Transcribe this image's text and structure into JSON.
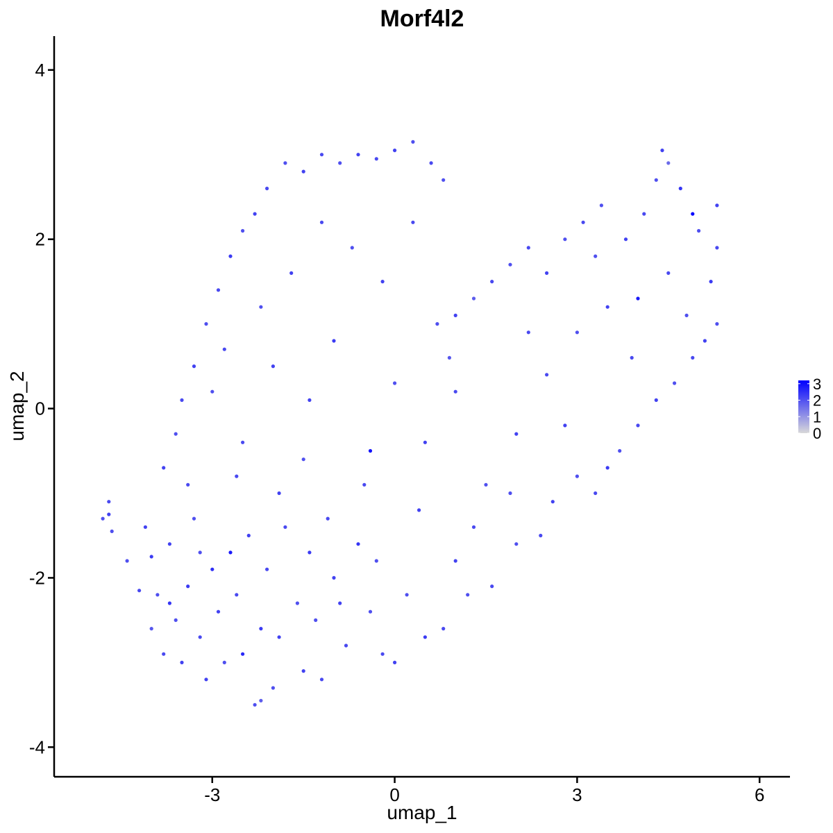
{
  "chart_data": {
    "type": "scatter",
    "title": "Morf4l2",
    "xlabel": "umap_1",
    "ylabel": "umap_2",
    "xlim": [
      -5.6,
      6.5
    ],
    "ylim": [
      -4.35,
      4.4
    ],
    "x_ticks": [
      -3,
      0,
      3,
      6
    ],
    "y_ticks": [
      -4,
      -2,
      0,
      2,
      4
    ],
    "x_tick_labels": [
      "-3",
      "0",
      "3",
      "6"
    ],
    "y_tick_labels": [
      "-4",
      "-2",
      "0",
      "2",
      "4"
    ],
    "grid": false,
    "legend": {
      "placement": "right",
      "type": "colorbar",
      "ticks": [
        0,
        1,
        2,
        3
      ],
      "tick_labels": [
        "0",
        "1",
        "2",
        "3"
      ],
      "range": [
        0,
        3.2
      ],
      "low_color": "#d9d9d9",
      "high_color": "#0000ff"
    },
    "point_color_scale": {
      "low": "#d3d3d3",
      "high": "#0000ff"
    },
    "series": [
      {
        "points": [
          [
            -4.8,
            -1.3,
            2.0
          ],
          [
            -4.7,
            -1.1,
            2.1
          ],
          [
            -4.7,
            -1.25,
            2.2
          ],
          [
            -4.65,
            -1.45,
            2.0
          ],
          [
            -4.4,
            -1.8,
            2.0
          ],
          [
            -4.2,
            -2.15,
            2.1
          ],
          [
            -4.1,
            -1.4,
            2.2
          ],
          [
            -4.0,
            -2.6,
            1.9
          ],
          [
            -4.0,
            -1.75,
            2.3
          ],
          [
            -3.9,
            -2.2,
            2.0
          ],
          [
            -3.8,
            -2.9,
            2.1
          ],
          [
            -3.7,
            -1.6,
            2.2
          ],
          [
            -3.7,
            -2.3,
            2.4
          ],
          [
            -3.6,
            -2.5,
            2.0
          ],
          [
            -3.5,
            -3.0,
            2.2
          ],
          [
            -3.4,
            -2.1,
            2.3
          ],
          [
            -3.3,
            -1.3,
            2.0
          ],
          [
            -3.2,
            -2.7,
            2.1
          ],
          [
            -3.1,
            -3.2,
            2.2
          ],
          [
            -3.0,
            -1.9,
            2.5
          ],
          [
            -2.9,
            -2.4,
            2.2
          ],
          [
            -2.8,
            -3.0,
            2.0
          ],
          [
            -2.7,
            -1.7,
            2.8
          ],
          [
            -2.6,
            -2.2,
            2.1
          ],
          [
            -2.5,
            -2.9,
            2.6
          ],
          [
            -2.4,
            -1.5,
            2.2
          ],
          [
            -2.3,
            -3.5,
            2.0
          ],
          [
            -2.2,
            -3.45,
            1.8
          ],
          [
            -2.2,
            -2.6,
            2.3
          ],
          [
            -2.1,
            -1.9,
            2.1
          ],
          [
            -2.0,
            -3.3,
            2.0
          ],
          [
            -1.9,
            -2.7,
            2.2
          ],
          [
            -1.8,
            -1.4,
            2.1
          ],
          [
            -1.6,
            -2.3,
            2.0
          ],
          [
            -1.5,
            -3.1,
            2.2
          ],
          [
            -1.4,
            -1.7,
            2.3
          ],
          [
            -1.3,
            -2.5,
            2.0
          ],
          [
            -1.2,
            -3.2,
            2.1
          ],
          [
            -1.0,
            -2.0,
            2.2
          ],
          [
            -0.8,
            -2.8,
            2.1
          ],
          [
            -0.6,
            -1.6,
            2.4
          ],
          [
            -0.4,
            -2.4,
            2.0
          ],
          [
            -0.2,
            -2.9,
            2.1
          ],
          [
            0.0,
            -3.0,
            2.2
          ],
          [
            0.2,
            -2.2,
            2.0
          ],
          [
            0.5,
            -2.7,
            2.3
          ],
          [
            0.8,
            -2.6,
            2.1
          ],
          [
            1.0,
            -1.8,
            2.2
          ],
          [
            1.2,
            -2.2,
            2.0
          ],
          [
            1.6,
            -2.1,
            2.1
          ],
          [
            2.0,
            -1.6,
            2.0
          ],
          [
            2.4,
            -1.5,
            2.1
          ],
          [
            2.6,
            -1.1,
            2.2
          ],
          [
            3.0,
            -0.8,
            2.0
          ],
          [
            3.3,
            -1.0,
            2.1
          ],
          [
            3.5,
            -0.7,
            2.3
          ],
          [
            3.7,
            -0.5,
            2.0
          ],
          [
            4.0,
            -0.2,
            2.1
          ],
          [
            4.3,
            0.1,
            2.2
          ],
          [
            4.6,
            0.3,
            2.0
          ],
          [
            4.9,
            0.6,
            2.1
          ],
          [
            5.1,
            0.8,
            2.2
          ],
          [
            5.3,
            1.0,
            2.0
          ],
          [
            5.2,
            1.5,
            2.3
          ],
          [
            5.3,
            1.9,
            2.1
          ],
          [
            5.3,
            2.4,
            2.2
          ],
          [
            5.0,
            2.1,
            2.0
          ],
          [
            4.9,
            2.3,
            3.1
          ],
          [
            4.7,
            2.6,
            2.4
          ],
          [
            4.5,
            2.9,
            1.6
          ],
          [
            4.4,
            3.05,
            2.2
          ],
          [
            4.3,
            2.7,
            2.0
          ],
          [
            4.1,
            2.3,
            2.1
          ],
          [
            3.8,
            2.0,
            2.2
          ],
          [
            3.4,
            2.4,
            2.0
          ],
          [
            3.1,
            2.2,
            2.1
          ],
          [
            2.8,
            2.0,
            2.0
          ],
          [
            2.5,
            1.6,
            2.2
          ],
          [
            2.2,
            1.9,
            2.1
          ],
          [
            1.9,
            1.7,
            2.0
          ],
          [
            1.6,
            1.5,
            2.1
          ],
          [
            1.3,
            1.3,
            1.8
          ],
          [
            1.0,
            1.1,
            2.2
          ],
          [
            0.8,
            2.7,
            2.0
          ],
          [
            0.6,
            2.9,
            2.1
          ],
          [
            0.3,
            3.15,
            2.0
          ],
          [
            0.0,
            3.05,
            2.2
          ],
          [
            -0.3,
            2.95,
            2.1
          ],
          [
            -0.6,
            3.0,
            2.2
          ],
          [
            -0.9,
            2.9,
            2.0
          ],
          [
            -1.2,
            3.0,
            2.1
          ],
          [
            -1.5,
            2.8,
            2.2
          ],
          [
            -1.8,
            2.9,
            2.0
          ],
          [
            -2.1,
            2.6,
            2.1
          ],
          [
            -2.3,
            2.3,
            2.2
          ],
          [
            -2.5,
            2.1,
            2.0
          ],
          [
            -2.7,
            1.8,
            2.3
          ],
          [
            -2.9,
            1.4,
            2.1
          ],
          [
            -3.1,
            1.0,
            2.0
          ],
          [
            -3.3,
            0.5,
            2.2
          ],
          [
            -3.5,
            0.1,
            2.1
          ],
          [
            -3.6,
            -0.3,
            2.0
          ],
          [
            -3.8,
            -0.7,
            2.2
          ],
          [
            -3.0,
            0.2,
            2.0
          ],
          [
            -2.5,
            -0.4,
            2.1
          ],
          [
            -2.0,
            0.5,
            2.2
          ],
          [
            -1.5,
            -0.6,
            2.0
          ],
          [
            -1.0,
            0.8,
            2.3
          ],
          [
            -0.5,
            -0.9,
            2.1
          ],
          [
            0.0,
            0.3,
            2.0
          ],
          [
            0.5,
            -0.4,
            2.2
          ],
          [
            1.0,
            0.2,
            2.1
          ],
          [
            1.5,
            -0.9,
            2.0
          ],
          [
            2.0,
            -0.3,
            2.2
          ],
          [
            2.5,
            0.4,
            2.1
          ],
          [
            3.0,
            0.9,
            2.0
          ],
          [
            3.5,
            1.2,
            2.2
          ],
          [
            4.0,
            1.3,
            2.8
          ],
          [
            4.5,
            1.6,
            2.1
          ],
          [
            -2.2,
            1.2,
            2.0
          ],
          [
            -1.7,
            1.6,
            2.2
          ],
          [
            -1.2,
            2.2,
            2.1
          ],
          [
            -0.7,
            1.9,
            2.0
          ],
          [
            -0.2,
            1.5,
            2.2
          ],
          [
            0.3,
            2.2,
            2.1
          ],
          [
            0.7,
            1.0,
            2.0
          ],
          [
            -0.4,
            -0.5,
            2.9
          ],
          [
            -2.6,
            -0.8,
            2.1
          ],
          [
            -3.2,
            -1.7,
            2.0
          ],
          [
            -1.9,
            -1.0,
            2.2
          ],
          [
            -1.1,
            -1.3,
            2.1
          ],
          [
            -0.3,
            -1.8,
            2.0
          ],
          [
            0.4,
            -1.2,
            2.2
          ],
          [
            1.3,
            -1.4,
            2.1
          ],
          [
            1.9,
            -1.0,
            2.0
          ],
          [
            2.8,
            -0.2,
            2.2
          ],
          [
            3.9,
            0.6,
            2.1
          ],
          [
            4.8,
            1.1,
            2.0
          ],
          [
            -2.8,
            0.7,
            2.1
          ],
          [
            -1.4,
            0.1,
            2.2
          ],
          [
            0.9,
            0.6,
            1.9
          ],
          [
            2.2,
            0.9,
            2.1
          ],
          [
            3.3,
            1.8,
            2.0
          ],
          [
            -3.4,
            -0.9,
            2.1
          ],
          [
            -0.9,
            -2.3,
            2.2
          ]
        ]
      }
    ]
  }
}
